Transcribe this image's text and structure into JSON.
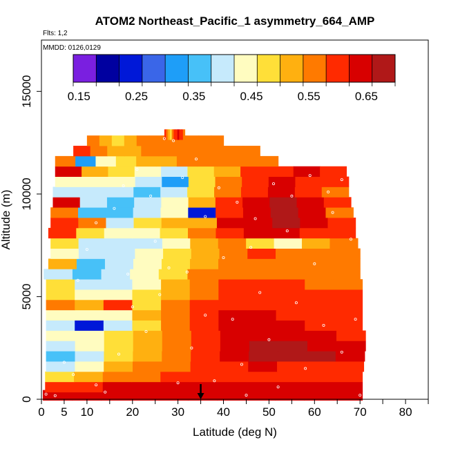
{
  "chart_data": {
    "type": "heatmap",
    "title": "ATOM2 Northeast_Pacific_1 asymmetry_664_AMP",
    "flights_label": "Flts: 1,2",
    "dates_label": "MMDD: 0126,0129",
    "xlabel": "Latitude (deg N)",
    "ylabel": "Altitude (m)",
    "xlim": [
      0,
      85
    ],
    "ylim": [
      0,
      17500
    ],
    "x_ticks": [
      0,
      5,
      10,
      20,
      30,
      40,
      50,
      60,
      70,
      80
    ],
    "x_tick_labels": [
      "0",
      "5",
      "10",
      "20",
      "30",
      "40",
      "50",
      "60",
      "70",
      "80"
    ],
    "y_ticks": [
      0,
      5000,
      10000,
      15000
    ],
    "y_tick_labels": [
      "0",
      "5000",
      "10000",
      "15000"
    ],
    "colorbar": {
      "range": [
        0.14,
        0.7
      ],
      "tick_values": [
        0.15,
        0.25,
        0.35,
        0.45,
        0.55,
        0.65
      ],
      "tick_labels": [
        "0.15",
        "0.25",
        "0.35",
        "0.45",
        "0.55",
        "0.65"
      ],
      "colors": [
        "#7a1fe0",
        "#0000a0",
        "#0018d8",
        "#3a66e8",
        "#1e9ef8",
        "#47c1f8",
        "#c6eafc",
        "#fffcc0",
        "#ffdf38",
        "#ffb010",
        "#ff7a00",
        "#ff2a00",
        "#d80000",
        "#b01818"
      ]
    },
    "marker": {
      "latitude": 35,
      "label": "flight marker"
    },
    "layers": [
      {
        "alt": 200,
        "lat_start": 0.3,
        "lat_end": 70.5,
        "values": [
          0.62,
          0.64,
          0.64,
          0.63,
          0.64,
          0.64,
          0.63,
          0.64,
          0.64,
          0.63,
          0.63
        ]
      },
      {
        "alt": 600,
        "lat_start": 0.8,
        "lat_end": 70.5,
        "values": [
          0.58,
          0.6,
          0.62,
          0.63,
          0.63,
          0.63,
          0.62,
          0.62,
          0.62,
          0.62,
          0.62
        ]
      },
      {
        "alt": 1100,
        "lat_start": 0.8,
        "lat_end": 70.5,
        "values": [
          0.46,
          0.52,
          0.55,
          0.57,
          0.58,
          0.59,
          0.6,
          0.59,
          0.58,
          0.58,
          0.58
        ]
      },
      {
        "alt": 1600,
        "lat_start": 1.0,
        "lat_end": 70.8,
        "values": [
          0.38,
          0.44,
          0.5,
          0.54,
          0.56,
          0.58,
          0.6,
          0.62,
          0.61,
          0.6,
          0.6
        ]
      },
      {
        "alt": 2100,
        "lat_start": 1.0,
        "lat_end": 71.0,
        "values": [
          0.36,
          0.4,
          0.46,
          0.52,
          0.55,
          0.58,
          0.64,
          0.67,
          0.68,
          0.66,
          0.64
        ]
      },
      {
        "alt": 2600,
        "lat_start": 1.0,
        "lat_end": 71.2,
        "values": [
          0.4,
          0.42,
          0.47,
          0.52,
          0.55,
          0.6,
          0.64,
          0.67,
          0.66,
          0.64,
          0.62
        ]
      },
      {
        "alt": 3100,
        "lat_start": 1.0,
        "lat_end": 71.2,
        "values": [
          0.42,
          0.44,
          0.48,
          0.52,
          0.56,
          0.6,
          0.64,
          0.65,
          0.64,
          0.62,
          0.61
        ]
      },
      {
        "alt": 3600,
        "lat_start": 1.0,
        "lat_end": 70.5,
        "values": [
          0.4,
          0.22,
          0.38,
          0.48,
          0.55,
          0.6,
          0.63,
          0.64,
          0.62,
          0.6,
          0.6
        ]
      },
      {
        "alt": 4100,
        "lat_start": 1.0,
        "lat_end": 70.5,
        "values": [
          0.45,
          0.44,
          0.45,
          0.5,
          0.55,
          0.59,
          0.62,
          0.62,
          0.6,
          0.6,
          0.59
        ]
      },
      {
        "alt": 4600,
        "lat_start": 1.0,
        "lat_end": 70.5,
        "values": [
          0.55,
          0.5,
          0.6,
          0.48,
          0.55,
          0.58,
          0.61,
          0.61,
          0.6,
          0.6,
          0.59
        ]
      },
      {
        "alt": 5100,
        "lat_start": 1.0,
        "lat_end": 70.5,
        "values": [
          0.48,
          0.42,
          0.42,
          0.46,
          0.52,
          0.57,
          0.6,
          0.59,
          0.59,
          0.58,
          0.58
        ]
      },
      {
        "alt": 5600,
        "lat_start": 1.0,
        "lat_end": 70.5,
        "values": [
          0.46,
          0.38,
          0.4,
          0.45,
          0.5,
          0.55,
          0.58,
          0.58,
          0.58,
          0.57,
          0.57
        ]
      },
      {
        "alt": 6100,
        "lat_start": 0.5,
        "lat_end": 70.0,
        "values": [
          0.4,
          0.34,
          0.38,
          0.44,
          0.49,
          0.54,
          0.57,
          0.57,
          0.56,
          0.56,
          0.55
        ]
      },
      {
        "alt": 6600,
        "lat_start": 1.5,
        "lat_end": 70.0,
        "values": [
          0.5,
          0.36,
          0.4,
          0.42,
          0.48,
          0.53,
          0.55,
          0.54,
          0.54,
          0.54,
          0.54
        ]
      },
      {
        "alt": 7100,
        "lat_start": 2.0,
        "lat_end": 70.0,
        "values": [
          0.42,
          0.38,
          0.4,
          0.42,
          0.46,
          0.5,
          0.54,
          0.58,
          0.56,
          0.55,
          0.54
        ]
      },
      {
        "alt": 7600,
        "lat_start": 2.0,
        "lat_end": 69.5,
        "values": [
          0.46,
          0.4,
          0.38,
          0.4,
          0.44,
          0.5,
          0.55,
          0.47,
          0.42,
          0.5,
          0.55
        ]
      },
      {
        "alt": 8100,
        "lat_start": 1.5,
        "lat_end": 69.0,
        "values": [
          0.58,
          0.48,
          0.42,
          0.42,
          0.48,
          0.54,
          0.6,
          0.62,
          0.62,
          0.6,
          0.58
        ]
      },
      {
        "alt": 8600,
        "lat_start": 2.0,
        "lat_end": 69.0,
        "values": [
          0.6,
          0.55,
          0.4,
          0.46,
          0.52,
          0.5,
          0.62,
          0.64,
          0.66,
          0.62,
          0.58
        ]
      },
      {
        "alt": 9100,
        "lat_start": 2.0,
        "lat_end": 68.5,
        "values": [
          0.55,
          0.36,
          0.35,
          0.38,
          0.42,
          0.22,
          0.6,
          0.62,
          0.66,
          0.62,
          0.57
        ]
      },
      {
        "alt": 9600,
        "lat_start": 2.5,
        "lat_end": 68.0,
        "values": [
          0.62,
          0.4,
          0.37,
          0.4,
          0.44,
          0.52,
          0.58,
          0.62,
          0.66,
          0.63,
          0.58
        ]
      },
      {
        "alt": 10100,
        "lat_start": 2.5,
        "lat_end": 67.5,
        "values": [
          0.38,
          0.4,
          0.38,
          0.37,
          0.38,
          0.46,
          0.55,
          0.6,
          0.62,
          0.6,
          0.56
        ]
      },
      {
        "alt": 10600,
        "lat_start": 3.0,
        "lat_end": 67.5,
        "values": [
          0.44,
          0.42,
          0.44,
          0.4,
          0.3,
          0.48,
          0.56,
          0.6,
          0.62,
          0.6,
          0.58
        ]
      },
      {
        "alt": 11100,
        "lat_start": 3.0,
        "lat_end": 67.0,
        "values": [
          0.62,
          0.52,
          0.46,
          0.44,
          0.4,
          0.46,
          0.52,
          0.58,
          0.6,
          0.62,
          0.6
        ]
      },
      {
        "alt": 11600,
        "lat_start": 3.0,
        "lat_end": 52.0,
        "values": [
          0.55,
          0.3,
          0.42,
          0.46,
          0.5,
          0.53,
          0.55,
          0.56,
          0.56,
          0.55,
          0.55
        ]
      },
      {
        "alt": 12100,
        "lat_start": 7.0,
        "lat_end": 48.0,
        "values": [
          0.58,
          0.55,
          0.5,
          0.52,
          0.55,
          0.56,
          0.57,
          0.57,
          0.57,
          0.56,
          0.56
        ]
      },
      {
        "alt": 12600,
        "lat_start": 10.0,
        "lat_end": 40.0,
        "values": [
          0.55,
          0.52,
          0.48,
          0.52,
          0.55,
          0.55,
          0.57,
          0.57,
          0.55,
          0.55,
          0.55
        ]
      },
      {
        "alt": 12900,
        "lat_start": 27.0,
        "lat_end": 31.5,
        "values": [
          0.6,
          0.56,
          0.5,
          0.48,
          0.55,
          0.58,
          0.6,
          0.62,
          0.6,
          0.58,
          0.56
        ]
      }
    ],
    "samples": [
      [
        1,
        250
      ],
      [
        3,
        180
      ],
      [
        5,
        1800
      ],
      [
        7,
        1200
      ],
      [
        12,
        700
      ],
      [
        14,
        350
      ],
      [
        17,
        2200
      ],
      [
        20,
        4500
      ],
      [
        23,
        3300
      ],
      [
        26,
        5100
      ],
      [
        28,
        6400
      ],
      [
        30,
        800
      ],
      [
        33,
        2500
      ],
      [
        36,
        4100
      ],
      [
        38,
        900
      ],
      [
        40,
        6900
      ],
      [
        42,
        3900
      ],
      [
        44,
        1700
      ],
      [
        46,
        7400
      ],
      [
        48,
        5200
      ],
      [
        50,
        2900
      ],
      [
        52,
        600
      ],
      [
        54,
        8200
      ],
      [
        56,
        4700
      ],
      [
        58,
        1500
      ],
      [
        60,
        6600
      ],
      [
        62,
        3600
      ],
      [
        64,
        9100
      ],
      [
        66,
        2300
      ],
      [
        68,
        7800
      ],
      [
        70,
        200
      ],
      [
        69,
        3900
      ],
      [
        8,
        5800
      ],
      [
        10,
        7300
      ],
      [
        12,
        8600
      ],
      [
        16,
        9300
      ],
      [
        18,
        10400
      ],
      [
        21,
        11200
      ],
      [
        24,
        9900
      ],
      [
        27,
        12700
      ],
      [
        29,
        12600
      ],
      [
        31,
        10800
      ],
      [
        34,
        11700
      ],
      [
        36,
        8900
      ],
      [
        39,
        10300
      ],
      [
        43,
        9600
      ],
      [
        47,
        8800
      ],
      [
        51,
        10500
      ],
      [
        55,
        9900
      ],
      [
        59,
        10900
      ],
      [
        63,
        10100
      ],
      [
        66,
        10700
      ],
      [
        19,
        6100
      ],
      [
        25,
        7700
      ],
      [
        32,
        6200
      ],
      [
        45,
        200
      ]
    ]
  }
}
